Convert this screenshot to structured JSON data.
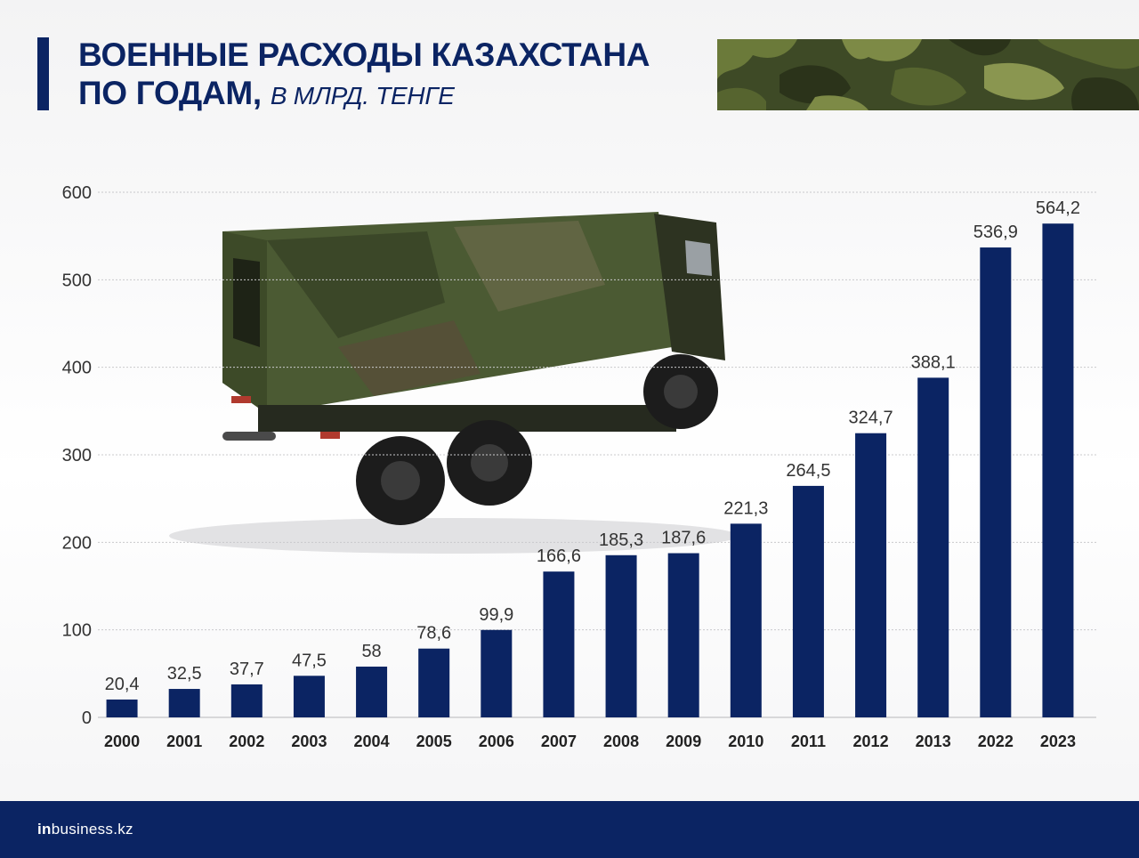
{
  "header": {
    "title_line1": "ВОЕННЫЕ РАСХОДЫ КАЗАХСТАНА",
    "title_line2": "ПО ГОДАМ,",
    "title_unit": "В МЛРД. ТЕНГЕ"
  },
  "footer": {
    "logo_prefix": "in",
    "logo_rest": "business.kz"
  },
  "colors": {
    "accent": "#0b2463",
    "bar": "#0b2463",
    "grid": "#c9c9cc",
    "text": "#333333"
  },
  "icons": {
    "decoration_top_right": "camouflage-pattern",
    "illustration": "military-truck"
  },
  "chart_data": {
    "type": "bar",
    "categories": [
      "2000",
      "2001",
      "2002",
      "2003",
      "2004",
      "2005",
      "2006",
      "2007",
      "2008",
      "2009",
      "2010",
      "2011",
      "2012",
      "2013",
      "2022",
      "2023"
    ],
    "values": [
      20.4,
      32.5,
      37.7,
      47.5,
      58,
      78.6,
      99.9,
      166.6,
      185.3,
      187.6,
      221.3,
      264.5,
      324.7,
      388.1,
      536.9,
      564.2
    ],
    "value_labels": [
      "20,4",
      "32,5",
      "37,7",
      "47,5",
      "58",
      "78,6",
      "99,9",
      "166,6",
      "185,3",
      "187,6",
      "221,3",
      "264,5",
      "324,7",
      "388,1",
      "536,9",
      "564,2"
    ],
    "yticks": [
      0,
      100,
      200,
      300,
      400,
      500,
      600
    ],
    "ylim": [
      0,
      600
    ],
    "grid": true,
    "legend": "none"
  }
}
